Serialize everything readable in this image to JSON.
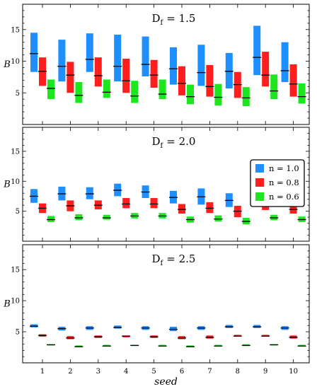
{
  "chart_data": [
    {
      "type": "box",
      "title_main": "D",
      "title_sub": "f",
      "title_value": "= 1.5",
      "ylabel": "B",
      "xlabel": "",
      "ylim": [
        0,
        19
      ],
      "yticks": [
        5,
        10,
        15
      ],
      "categories": [
        "1",
        "2",
        "3",
        "4",
        "5",
        "6",
        "7",
        "8",
        "9",
        "10"
      ],
      "series": [
        {
          "name": "n = 1.0",
          "color": "#1e8fff",
          "low": [
            8.3,
            6.8,
            8.3,
            6.8,
            7.6,
            6.3,
            6.1,
            5.7,
            7.8,
            6.7
          ],
          "high": [
            14.5,
            13.4,
            14.4,
            14.2,
            13.9,
            12.2,
            12.6,
            11.3,
            15.6,
            13.0
          ],
          "median": [
            11.2,
            9.2,
            10.3,
            9.2,
            9.5,
            8.8,
            8.2,
            8.4,
            10.6,
            8.5
          ]
        },
        {
          "name": "n = 0.8",
          "color": "#ff1e1e",
          "low": [
            6.1,
            5.0,
            6.0,
            5.0,
            5.8,
            4.6,
            4.4,
            4.2,
            6.0,
            4.4
          ],
          "high": [
            10.6,
            9.9,
            10.6,
            10.4,
            10.2,
            9.2,
            9.4,
            8.3,
            11.5,
            9.5
          ],
          "median": [
            8.4,
            7.8,
            7.7,
            6.9,
            7.8,
            6.5,
            6.0,
            6.3,
            7.8,
            6.4
          ]
        },
        {
          "name": "n = 0.6",
          "color": "#1ee61e",
          "low": [
            4.0,
            3.4,
            4.2,
            3.4,
            4.0,
            3.2,
            3.0,
            2.9,
            4.0,
            3.3
          ],
          "high": [
            7.1,
            6.7,
            7.1,
            6.9,
            7.1,
            6.3,
            6.4,
            5.9,
            7.9,
            6.5
          ],
          "median": [
            5.7,
            4.6,
            5.1,
            4.5,
            4.8,
            4.4,
            4.3,
            4.2,
            5.3,
            4.4
          ]
        }
      ]
    },
    {
      "type": "box",
      "title_main": "D",
      "title_sub": "f",
      "title_value": "= 2.0",
      "ylabel": "B",
      "xlabel": "",
      "ylim": [
        0,
        19
      ],
      "yticks": [
        5,
        10,
        15
      ],
      "categories": [
        "1",
        "2",
        "3",
        "4",
        "5",
        "6",
        "7",
        "8",
        "9",
        "10"
      ],
      "legend": {
        "position": "top-right"
      },
      "series": [
        {
          "name": "n = 1.0",
          "color": "#1e8fff",
          "low": [
            6.4,
            6.8,
            7.0,
            7.5,
            7.2,
            6.3,
            6.1,
            5.7,
            6.8,
            6.4
          ],
          "high": [
            8.7,
            9.1,
            9.0,
            9.6,
            9.3,
            8.4,
            8.8,
            8.0,
            9.0,
            8.6
          ],
          "median": [
            7.5,
            7.9,
            7.9,
            8.5,
            8.2,
            7.3,
            7.4,
            6.8,
            7.9,
            7.2
          ]
        },
        {
          "name": "n = 0.8",
          "color": "#ff1e1e",
          "low": [
            4.7,
            5.0,
            5.3,
            5.5,
            5.5,
            4.6,
            4.7,
            4.0,
            5.2,
            4.6
          ],
          "high": [
            6.3,
            6.8,
            6.8,
            7.2,
            7.2,
            6.2,
            6.5,
            5.9,
            6.7,
            6.2
          ],
          "median": [
            5.5,
            5.9,
            6.0,
            6.2,
            6.2,
            5.3,
            5.5,
            5.0,
            5.9,
            5.3
          ]
        },
        {
          "name": "n = 0.6",
          "color": "#1ee61e",
          "low": [
            3.2,
            3.5,
            3.6,
            3.8,
            3.8,
            3.1,
            3.3,
            2.8,
            3.5,
            3.2
          ],
          "high": [
            4.2,
            4.5,
            4.4,
            4.7,
            4.7,
            4.1,
            4.3,
            3.9,
            4.4,
            4.1
          ],
          "median": [
            3.6,
            3.9,
            3.9,
            4.2,
            4.2,
            3.6,
            3.7,
            3.3,
            3.9,
            3.6
          ]
        }
      ]
    },
    {
      "type": "box",
      "title_main": "D",
      "title_sub": "f",
      "title_value": "= 2.5",
      "ylabel": "B",
      "xlabel": "seed",
      "ylim": [
        0,
        19
      ],
      "yticks": [
        5,
        10,
        15
      ],
      "categories": [
        "1",
        "2",
        "3",
        "4",
        "5",
        "6",
        "7",
        "8",
        "9",
        "10"
      ],
      "series": [
        {
          "name": "n = 1.0",
          "color": "#1e8fff",
          "low": [
            5.7,
            5.2,
            5.3,
            5.5,
            5.3,
            5.1,
            5.3,
            5.6,
            5.6,
            5.3
          ],
          "high": [
            6.2,
            5.8,
            5.9,
            6.0,
            5.9,
            5.8,
            5.9,
            6.1,
            6.1,
            5.9
          ],
          "median": [
            5.9,
            5.5,
            5.6,
            5.7,
            5.6,
            5.4,
            5.6,
            5.8,
            5.8,
            5.6
          ]
        },
        {
          "name": "n = 0.8",
          "color": "#ff1e1e",
          "low": [
            4.2,
            3.8,
            4.0,
            4.1,
            4.0,
            3.8,
            3.9,
            4.2,
            4.2,
            3.9
          ],
          "high": [
            4.6,
            4.3,
            4.4,
            4.4,
            4.4,
            4.3,
            4.4,
            4.5,
            4.5,
            4.4
          ],
          "median": [
            4.4,
            4.0,
            4.2,
            4.3,
            4.2,
            4.0,
            4.1,
            4.3,
            4.3,
            4.1
          ]
        },
        {
          "name": "n = 0.6",
          "color": "#1ee61e",
          "low": [
            2.8,
            2.5,
            2.6,
            2.7,
            2.6,
            2.5,
            2.6,
            2.7,
            2.8,
            2.6
          ],
          "high": [
            3.0,
            2.8,
            2.9,
            2.9,
            2.9,
            2.8,
            2.9,
            3.0,
            3.0,
            2.9
          ],
          "median": [
            2.9,
            2.6,
            2.7,
            2.8,
            2.7,
            2.6,
            2.7,
            2.8,
            2.9,
            2.7
          ]
        }
      ]
    }
  ]
}
